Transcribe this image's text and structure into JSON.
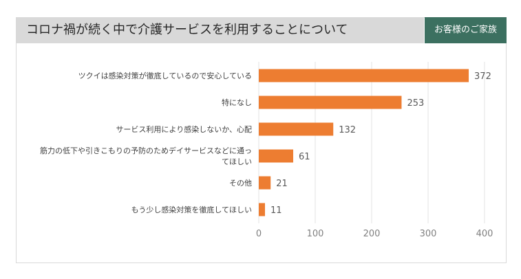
{
  "header": {
    "title": "コロナ禍が続く中で介護サービスを利用することについて",
    "tag": "お客様のご家族"
  },
  "colors": {
    "bar": "#ed7d31",
    "tag_bg": "#3c7060",
    "title_bg": "#d9d9d9"
  },
  "chart_data": {
    "type": "bar",
    "orientation": "horizontal",
    "title": "コロナ禍が続く中で介護サービスを利用することについて",
    "categories": [
      [
        "ツクイは感染対策が徹底しているので安心している"
      ],
      [
        "特になし"
      ],
      [
        "サービス利用により感染しないか、心配"
      ],
      [
        "筋力の低下や引きこもりの予防のためデイサービスなどに通っ",
        "てほしい"
      ],
      [
        "その他"
      ],
      [
        "もう少し感染対策を徹底してほしい"
      ]
    ],
    "values": [
      372,
      253,
      132,
      61,
      21,
      11
    ],
    "xlim": [
      0,
      400
    ],
    "xticks": [
      0,
      100,
      200,
      300,
      400
    ],
    "grid": true,
    "legend": "none"
  }
}
